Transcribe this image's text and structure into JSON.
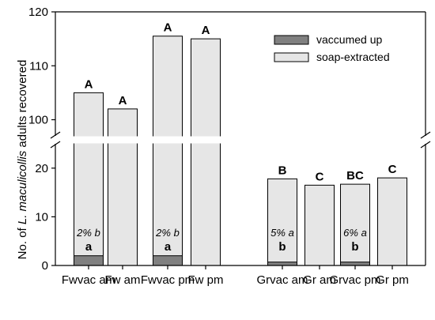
{
  "chart_data": {
    "type": "bar",
    "stacked": true,
    "broken_axis": true,
    "ylabel_parts": [
      "No. of ",
      "L. maculicollis",
      " adults recovered"
    ],
    "categories": [
      "Fwvac am",
      "Fw am",
      "Fwvac pm",
      "Fw pm",
      "Grvac am",
      "Gr am",
      "Grvac pm",
      "Gr pm"
    ],
    "series": [
      {
        "name": "vaccumed up",
        "color": "#808080",
        "values": [
          2,
          0,
          2,
          0,
          0.7,
          0,
          0.7,
          0
        ]
      },
      {
        "name": "soap-extracted",
        "color": "#e6e6e6",
        "values": [
          103,
          102,
          113.5,
          115,
          17.1,
          16.5,
          16,
          18
        ]
      }
    ],
    "totals": [
      105,
      102,
      115.5,
      115,
      17.8,
      16.5,
      16.7,
      18
    ],
    "upper_letters": [
      "A",
      "A",
      "A",
      "A",
      "B",
      "C",
      "BC",
      "C"
    ],
    "lower_letters": [
      "a",
      "",
      "a",
      "",
      "b",
      "",
      "b",
      ""
    ],
    "percent_labels": [
      "2% b",
      "",
      "2% b",
      "",
      "5% a",
      "",
      "6% a",
      ""
    ],
    "y_lower_ticks": [
      "0",
      "10",
      "20"
    ],
    "y_upper_ticks": [
      "100",
      "110",
      "120"
    ],
    "ylim_lower": [
      0,
      25
    ],
    "ylim_upper": [
      97,
      120
    ],
    "legend_position": "top-right"
  }
}
